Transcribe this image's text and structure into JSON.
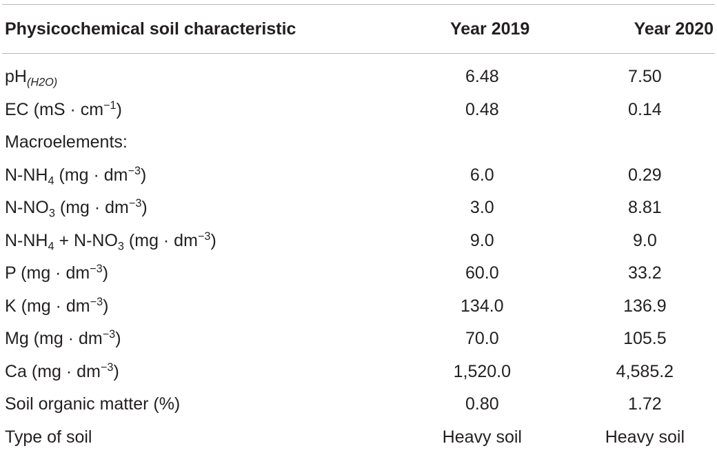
{
  "header": {
    "col1": "Physicochemical soil characteristic",
    "col2": "Year 2019",
    "col3": "Year 2020"
  },
  "rows": [
    {
      "label_main": "pH",
      "label_sub": "(H2O)",
      "y2019": "6.48",
      "y2020": "7.50"
    },
    {
      "label_pre": "EC (mS · cm",
      "label_sup": "−1",
      "label_post": ")",
      "y2019": "0.48",
      "y2020": "0.14"
    },
    {
      "label": "Macroelements:",
      "y2019": "",
      "y2020": ""
    },
    {
      "label_pre": "N-NH",
      "label_sub": "4",
      "label_mid": " (mg · dm",
      "label_sup": "−3",
      "label_post": ")",
      "y2019": "6.0",
      "y2020": "0.29"
    },
    {
      "label_pre": "N-NO",
      "label_sub": "3",
      "label_mid": " (mg · dm",
      "label_sup": "−3",
      "label_post": ")",
      "y2019": "3.0",
      "y2020": "8.81"
    },
    {
      "label_pre": "N-NH",
      "label_sub": "4",
      "label_mid1": " + N-NO",
      "label_sub2": "3",
      "label_mid2": " (mg · dm",
      "label_sup": "−3",
      "label_post": ")",
      "y2019": "9.0",
      "y2020": "9.0"
    },
    {
      "label_pre": "P (mg · dm",
      "label_sup": "−3",
      "label_post": ")",
      "y2019": "60.0",
      "y2020": "33.2"
    },
    {
      "label_pre": "K (mg · dm",
      "label_sup": "−3",
      "label_post": ")",
      "y2019": "134.0",
      "y2020": "136.9"
    },
    {
      "label_pre": "Mg (mg · dm",
      "label_sup": "−3",
      "label_post": ")",
      "y2019": "70.0",
      "y2020": "105.5"
    },
    {
      "label_pre": "Ca (mg · dm",
      "label_sup": "−3",
      "label_post": ")",
      "y2019": "1,520.0",
      "y2020": "4,585.2"
    },
    {
      "label": "Soil organic matter (%)",
      "y2019": "0.80",
      "y2020": "1.72"
    },
    {
      "label": "Type of soil",
      "y2019": "Heavy soil",
      "y2020": "Heavy soil"
    }
  ]
}
